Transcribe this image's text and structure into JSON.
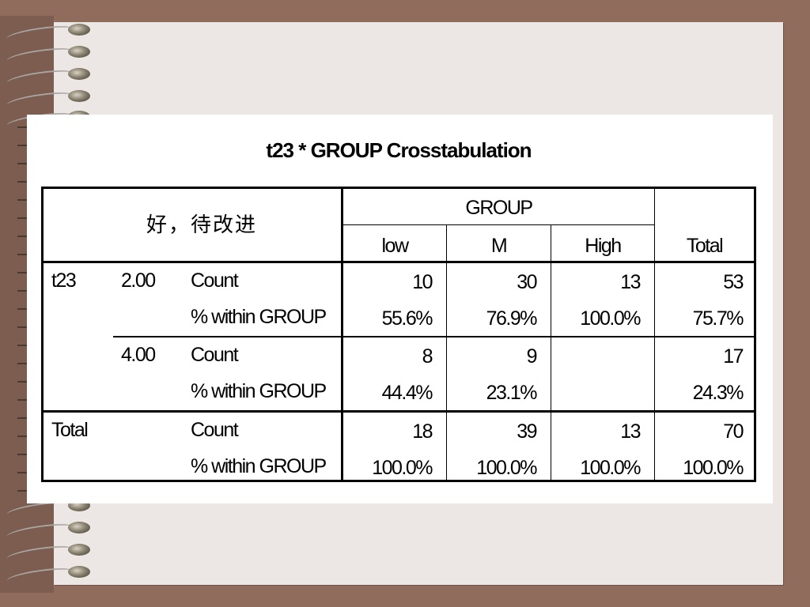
{
  "title": "t23 * GROUP Crosstabulation",
  "table": {
    "corner_label": "好，待改进",
    "group_header": "GROUP",
    "columns": [
      "low",
      "M",
      "High"
    ],
    "total_header": "Total",
    "row_var": "t23",
    "rows": [
      {
        "level": "2.00",
        "count_label": "Count",
        "pct_label": "% within GROUP",
        "counts": [
          "10",
          "30",
          "13"
        ],
        "count_total": "53",
        "pcts": [
          "55.6%",
          "76.9%",
          "100.0%"
        ],
        "pct_total": "75.7%"
      },
      {
        "level": "4.00",
        "count_label": "Count",
        "pct_label": "% within GROUP",
        "counts": [
          "8",
          "9",
          ""
        ],
        "count_total": "17",
        "pcts": [
          "44.4%",
          "23.1%",
          ""
        ],
        "pct_total": "24.3%"
      }
    ],
    "total_row": {
      "label": "Total",
      "count_label": "Count",
      "pct_label": "% within GROUP",
      "counts": [
        "18",
        "39",
        "13"
      ],
      "count_total": "70",
      "pcts": [
        "100.0%",
        "100.0%",
        "100.0%"
      ],
      "pct_total": "100.0%"
    }
  }
}
